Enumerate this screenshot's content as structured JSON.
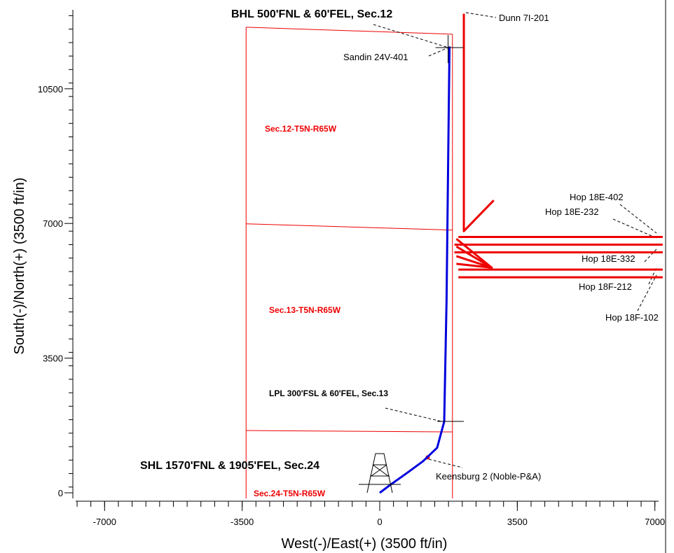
{
  "chart_data": {
    "type": "line",
    "title": "",
    "xlabel": "West(-)/East(+) (3500 ft/in)",
    "ylabel": "South(-)/North(+) (3500 ft/in)",
    "xlim": [
      -8000,
      7200
    ],
    "ylim": [
      -200,
      12400
    ],
    "x_ticks": [
      -7000,
      -3500,
      0,
      3500,
      7000
    ],
    "y_ticks": [
      0,
      3500,
      7000,
      10500
    ],
    "grid": false,
    "colors": {
      "plan": "#0000dd",
      "offset": "#ee0000",
      "lease": "#ee0000",
      "leader": "#000000"
    },
    "section_lines": {
      "x_west": -3400,
      "x_east": 1850,
      "y_boundaries": [
        1600,
        6900,
        12100
      ]
    },
    "section_labels": [
      "Sec.12-T5N-R65W",
      "Sec.13-T5N-R65W",
      "Sec.24-T5N-R65W"
    ],
    "plan_well": {
      "name": "Sandin 24V-401",
      "points": [
        [
          0,
          0
        ],
        [
          300,
          230
        ],
        [
          700,
          520
        ],
        [
          1100,
          820
        ],
        [
          1460,
          1170
        ],
        [
          1640,
          1850
        ],
        [
          1700,
          5000
        ],
        [
          1745,
          9000
        ],
        [
          1775,
          11600
        ]
      ]
    },
    "offset_wells": [
      {
        "name": "Dunn 7I-201",
        "points": [
          [
            2140,
            12450
          ],
          [
            2140,
            6800
          ],
          [
            2900,
            7600
          ]
        ]
      },
      {
        "name": "Hop 18E-402",
        "points": [
          [
            2000,
            6650
          ],
          [
            7200,
            6650
          ]
        ]
      },
      {
        "name": "Hop 18E-232",
        "points": [
          [
            1900,
            6450
          ],
          [
            7200,
            6450
          ]
        ]
      },
      {
        "name": "Hop 18E-332",
        "points": [
          [
            1900,
            6250
          ],
          [
            7200,
            6250
          ]
        ]
      },
      {
        "name": "Hop 18F-212",
        "points": [
          [
            2000,
            5800
          ],
          [
            7200,
            5800
          ]
        ]
      },
      {
        "name": "Hop 18F-102",
        "points": [
          [
            2000,
            5600
          ],
          [
            7200,
            5600
          ]
        ]
      },
      {
        "name": "Hop 18E-332 fan",
        "points": [
          [
            1950,
            6600
          ],
          [
            2850,
            5850
          ],
          [
            1950,
            6150
          ]
        ]
      },
      {
        "name": "Hop 18F-212 fan",
        "points": [
          [
            1950,
            6400
          ],
          [
            2850,
            5850
          ],
          [
            1950,
            5950
          ]
        ]
      }
    ],
    "p_and_a": {
      "name": "Keensburg 2 (Noble-P&A)",
      "x": 1220,
      "y": 920
    },
    "annotations": {
      "bhl": "BHL 500'FNL & 60'FEL, Sec.12",
      "lpl": "LPL 300'FSL & 60'FEL, Sec.13",
      "shl": "SHL 1570'FNL & 1905'FEL, Sec.24",
      "sandin": "Sandin 24V-401",
      "dunn": "Dunn 7I-201",
      "keensburg": "Keensburg 2 (Noble-P&A)",
      "hop_402": "Hop 18E-402",
      "hop_232": "Hop 18E-232",
      "hop_332": "Hop 18E-332",
      "hop_212": "Hop 18F-212",
      "hop_102": "Hop 18F-102"
    }
  }
}
